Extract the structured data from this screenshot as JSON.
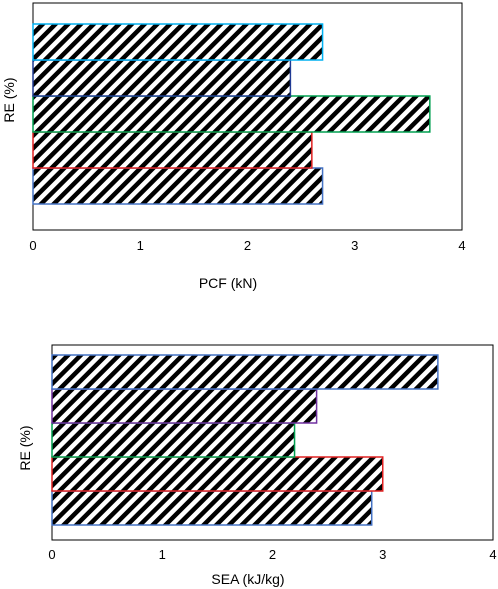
{
  "chart_data": [
    {
      "type": "bar",
      "orientation": "horizontal",
      "title": "",
      "xlabel": "PCF (kN)",
      "ylabel": "RE (%)",
      "xlim": [
        0,
        4
      ],
      "xticks": [
        "0",
        "1",
        "2",
        "3",
        "4"
      ],
      "grid": false,
      "bar_pattern": "diagonal-hatch",
      "bars": [
        {
          "value": 2.7,
          "color": "#4472c4"
        },
        {
          "value": 2.6,
          "color": "#e02020"
        },
        {
          "value": 3.7,
          "color": "#00a050"
        },
        {
          "value": 2.4,
          "color": "#1f3a93"
        },
        {
          "value": 2.7,
          "color": "#00b0f0"
        }
      ]
    },
    {
      "type": "bar",
      "orientation": "horizontal",
      "title": "",
      "xlabel": "SEA (kJ/kg)",
      "ylabel": "RE (%)",
      "xlim": [
        0,
        4
      ],
      "xticks": [
        "0",
        "1",
        "2",
        "3",
        "4"
      ],
      "grid": false,
      "bar_pattern": "diagonal-hatch",
      "bars": [
        {
          "value": 2.9,
          "color": "#4472c4"
        },
        {
          "value": 3.0,
          "color": "#e02020"
        },
        {
          "value": 2.2,
          "color": "#00a050"
        },
        {
          "value": 2.4,
          "color": "#7030a0"
        },
        {
          "value": 3.5,
          "color": "#4472c4"
        }
      ]
    }
  ]
}
